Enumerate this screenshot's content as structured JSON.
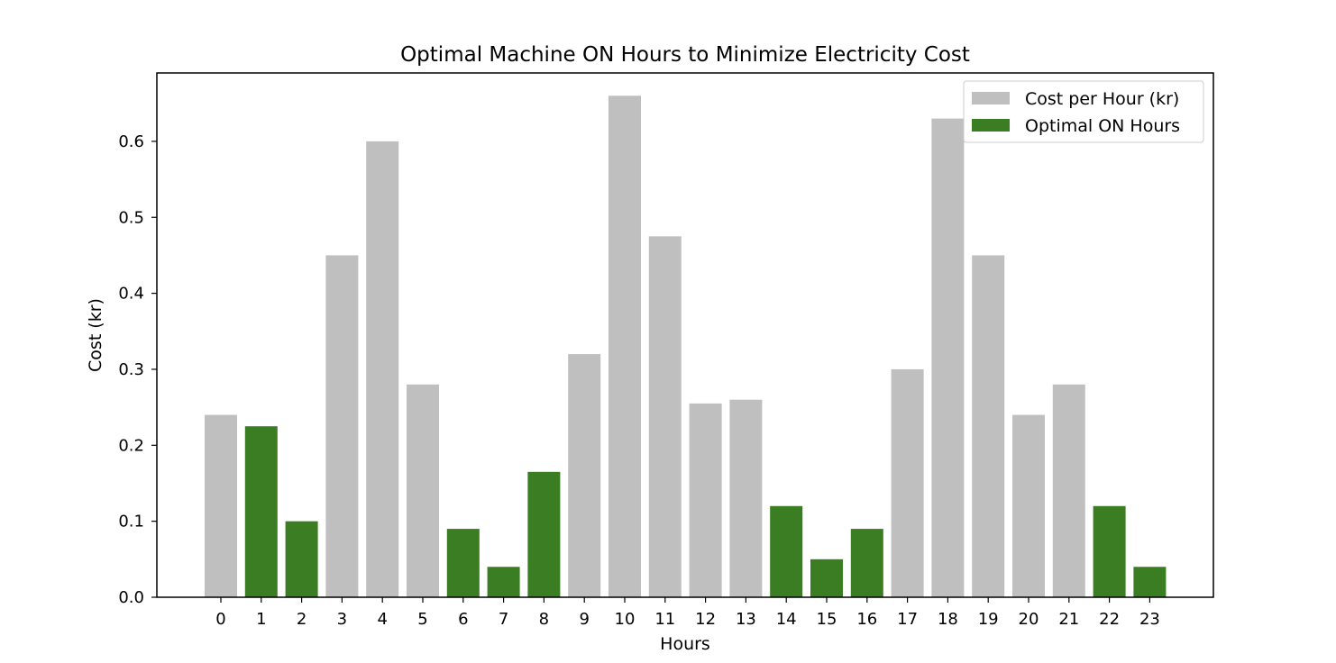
{
  "chart_data": {
    "type": "bar",
    "title": "Optimal Machine ON Hours to Minimize Electricity Cost",
    "xlabel": "Hours",
    "ylabel": "Cost (kr)",
    "categories": [
      "0",
      "1",
      "2",
      "3",
      "4",
      "5",
      "6",
      "7",
      "8",
      "9",
      "10",
      "11",
      "12",
      "13",
      "14",
      "15",
      "16",
      "17",
      "18",
      "19",
      "20",
      "21",
      "22",
      "23"
    ],
    "ylim": [
      0,
      0.69
    ],
    "yticks": [
      0.0,
      0.1,
      0.2,
      0.3,
      0.4,
      0.5,
      0.6
    ],
    "ytick_labels": [
      "0.0",
      "0.1",
      "0.2",
      "0.3",
      "0.4",
      "0.5",
      "0.6"
    ],
    "grid": false,
    "legend_position": "top-right",
    "series": [
      {
        "name": "Cost per Hour (kr)",
        "color": "#bfbfbf",
        "values": [
          0.24,
          null,
          null,
          0.45,
          0.6,
          0.28,
          null,
          null,
          null,
          0.32,
          0.66,
          0.475,
          0.255,
          0.26,
          null,
          null,
          null,
          0.3,
          0.63,
          0.45,
          0.24,
          0.28,
          null,
          null
        ]
      },
      {
        "name": "Optimal ON Hours",
        "color": "#3a7d22",
        "values": [
          null,
          0.225,
          0.1,
          null,
          null,
          null,
          0.09,
          0.04,
          0.165,
          null,
          null,
          null,
          null,
          null,
          0.12,
          0.05,
          0.09,
          null,
          null,
          null,
          null,
          null,
          0.12,
          0.04
        ]
      }
    ]
  }
}
